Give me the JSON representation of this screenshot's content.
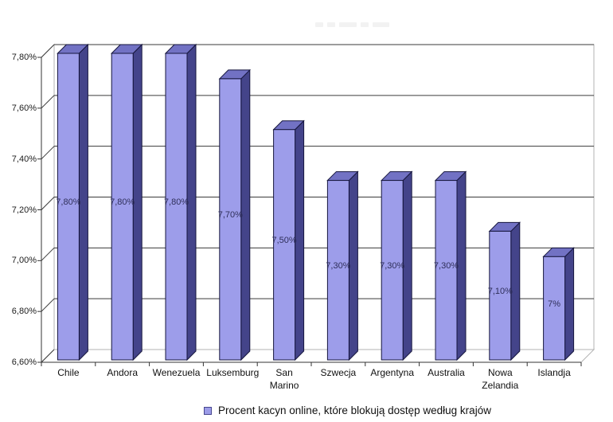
{
  "chart_data": {
    "type": "bar",
    "style": "3d",
    "grid": true,
    "categories": [
      "Chile",
      "Andora",
      "Wenezuela",
      "Luksemburg",
      "San Marino",
      "Szwecja",
      "Argentyna",
      "Australia",
      "Nowa Zelandia",
      "Islandja"
    ],
    "series": [
      {
        "name": "Procent kacyn online, które blokują dostęp według krajów",
        "values": [
          7.8,
          7.8,
          7.8,
          7.7,
          7.5,
          7.3,
          7.3,
          7.3,
          7.1,
          7.0
        ],
        "data_labels": [
          "7,80%",
          "7,80%",
          "7,80%",
          "7,70%",
          "7,50%",
          "7,30%",
          "7,30%",
          "7,30%",
          "7,10%",
          "7%"
        ]
      }
    ],
    "y_axis": {
      "min": 6.6,
      "max": 7.8,
      "ticks": [
        {
          "value": 7.8,
          "label": "7,80%"
        },
        {
          "value": 7.6,
          "label": "7,60%"
        },
        {
          "value": 7.4,
          "label": "7,40%"
        },
        {
          "value": 7.2,
          "label": "7,20%"
        },
        {
          "value": 7.0,
          "label": "7,00%"
        },
        {
          "value": 6.8,
          "label": "6,80%"
        },
        {
          "value": 6.6,
          "label": "6,60%"
        }
      ]
    },
    "xlabel": "",
    "ylabel": "",
    "legend": {
      "position": "bottom",
      "items": [
        {
          "label": "Procent kacyn online, które blokują dostęp według krajów",
          "marker": "square"
        }
      ]
    },
    "colors": {
      "bar_front": "#9d9dea",
      "bar_top": "#7272c4",
      "bar_side": "#44448a",
      "bar_border": "#16163e",
      "grid": "#3a3a3a",
      "frame": "#b3b3b3",
      "axis": "#333333",
      "data_label": "#2f2f5a",
      "legend_marker_fill": "#9c9ce8",
      "legend_marker_border": "#47478f"
    }
  }
}
